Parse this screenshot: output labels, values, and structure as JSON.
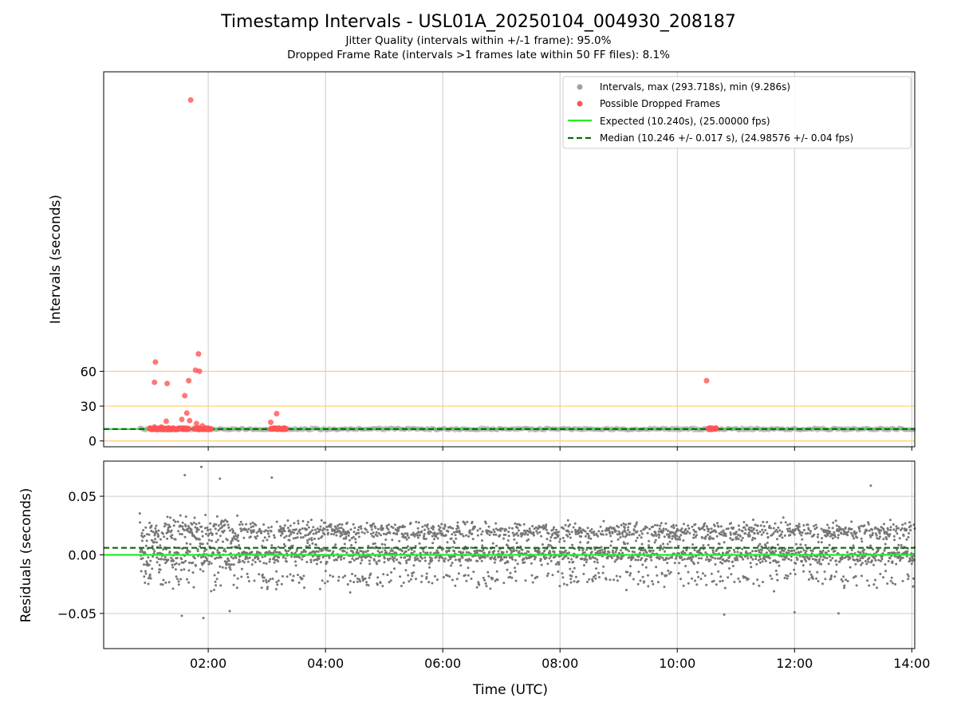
{
  "header": {
    "title": "Timestamp Intervals - USL01A_20250104_004930_208187",
    "subtitle1": "Jitter Quality (intervals within +/-1 frame): 95.0%",
    "subtitle2": "Dropped Frame Rate (intervals >1 frames late within 50 FF files): 8.1%"
  },
  "chart_data": [
    {
      "type": "scatter",
      "panel": "intervals",
      "ylabel": "Intervals (seconds)",
      "xlabel": "",
      "xlim": [
        "00:13",
        "14:03"
      ],
      "ylim": [
        -5,
        318
      ],
      "yticks": [
        0,
        30,
        60
      ],
      "ytick_labels": [
        "0",
        "30",
        "60"
      ],
      "xticks": [
        "02:00",
        "04:00",
        "06:00",
        "08:00",
        "10:00",
        "12:00",
        "14:00"
      ],
      "reference_lines": [
        0,
        30,
        60
      ],
      "reference_line_color": "#ffcc66",
      "grid": "vertical",
      "legend": "top-right",
      "legend_entries": [
        {
          "label": "Intervals, max (293.718s), min (9.286s)",
          "kind": "marker",
          "color": "#a0a0a0"
        },
        {
          "label": "Possible Dropped Frames",
          "kind": "marker",
          "color": "#ff5555"
        },
        {
          "label": "Expected (10.240s), (25.00000 fps)",
          "kind": "line",
          "color": "#22ee22"
        },
        {
          "label": "Median (10.246 +/- 0.017 s), (24.98576 +/- 0.04 fps)",
          "kind": "dashed",
          "color": "#116611"
        }
      ],
      "series": [
        {
          "name": "Intervals, max (293.718s), min (9.286s)",
          "x_range": [
            "00:50",
            "14:03"
          ],
          "y_typical": 10.24,
          "color": "#a0a0a0"
        },
        {
          "name": "Possible Dropped Frames",
          "color": "#ff5555",
          "points": [
            [
              "01:42",
              293.7
            ],
            [
              "01:06",
              68
            ],
            [
              "01:50",
              75
            ],
            [
              "01:47",
              61
            ],
            [
              "01:51",
              60
            ],
            [
              "01:05",
              50.5
            ],
            [
              "01:18",
              49.5
            ],
            [
              "01:40",
              52
            ],
            [
              "01:36",
              39
            ],
            [
              "01:38",
              24
            ],
            [
              "01:33",
              18.5
            ],
            [
              "01:41",
              17.5
            ],
            [
              "01:17",
              17
            ],
            [
              "01:48",
              15
            ],
            [
              "01:54",
              13
            ],
            [
              "03:04",
              16
            ],
            [
              "03:10",
              23.5
            ],
            [
              "10:30",
              52
            ],
            [
              "01:05",
              12
            ],
            [
              "01:09",
              11
            ],
            [
              "01:12",
              12
            ],
            [
              "01:24",
              11
            ],
            [
              "01:30",
              11
            ],
            [
              "01:57",
              11
            ],
            [
              "02:00",
              11
            ]
          ],
          "clusters": [
            {
              "from": "01:00",
              "to": "01:30",
              "y": 10.5
            },
            {
              "from": "01:32",
              "to": "01:40",
              "y": 10.5
            },
            {
              "from": "01:46",
              "to": "02:03",
              "y": 10.5
            },
            {
              "from": "03:04",
              "to": "03:20",
              "y": 10.5
            },
            {
              "from": "10:32",
              "to": "10:40",
              "y": 10.5
            }
          ]
        },
        {
          "name": "Expected (10.240s), (25.00000 fps)",
          "y": 10.24,
          "color": "#22ee22"
        },
        {
          "name": "Median (10.246 +/- 0.017 s), (24.98576 +/- 0.04 fps)",
          "y": 10.246,
          "color": "#116611"
        }
      ]
    },
    {
      "type": "scatter",
      "panel": "residuals",
      "ylabel": "Residuals (seconds)",
      "xlabel": "Time (UTC)",
      "xlim": [
        "00:13",
        "14:03"
      ],
      "ylim": [
        -0.08,
        0.08
      ],
      "yticks": [
        -0.05,
        0.0,
        0.05
      ],
      "ytick_labels": [
        "−0.05",
        "0.00",
        "0.05"
      ],
      "xticks": [
        "02:00",
        "04:00",
        "06:00",
        "08:00",
        "10:00",
        "12:00",
        "14:00"
      ],
      "grid": "both",
      "series": [
        {
          "name": "Residuals",
          "x_range": [
            "00:50",
            "14:03"
          ],
          "bands": [
            0.02,
            0.0,
            -0.02
          ],
          "spread": 0.008,
          "color": "#777777",
          "outliers": [
            [
              "01:53",
              0.075
            ],
            [
              "02:12",
              0.065
            ],
            [
              "01:36",
              0.068
            ],
            [
              "03:05",
              0.066
            ],
            [
              "01:33",
              -0.052
            ],
            [
              "01:55",
              -0.054
            ],
            [
              "02:22",
              -0.048
            ],
            [
              "10:48",
              -0.051
            ],
            [
              "12:00",
              -0.049
            ],
            [
              "12:45",
              -0.05
            ],
            [
              "13:18",
              0.059
            ]
          ]
        },
        {
          "name": "Expected",
          "y": 0.0,
          "color": "#22ee22"
        },
        {
          "name": "Median",
          "y": 0.006,
          "color": "#116611"
        }
      ]
    }
  ]
}
